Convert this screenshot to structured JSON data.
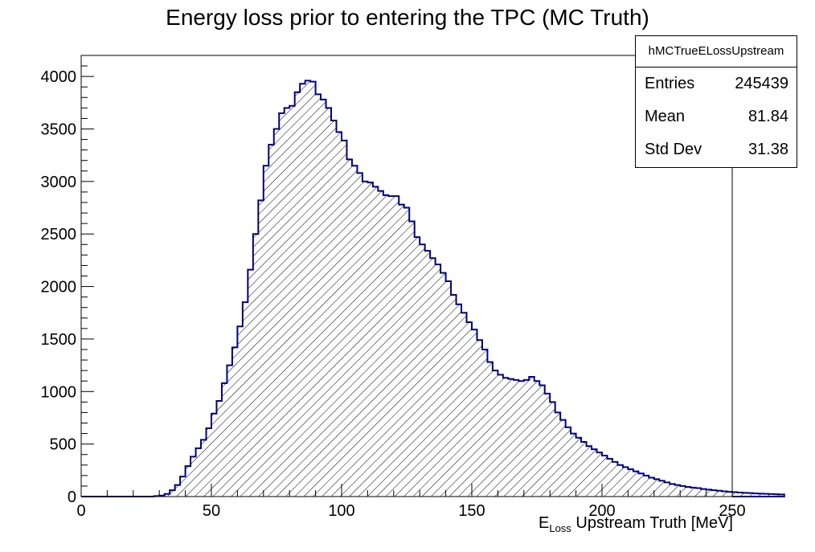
{
  "chart_data": {
    "type": "bar",
    "title": "Energy loss prior to entering the TPC (MC Truth)",
    "xlabel": "E",
    "xlabel_sub": "Loss",
    "xlabel_rest": "Upstream Truth [MeV]",
    "ylabel": "",
    "xlim": [
      0,
      250
    ],
    "ylim": [
      0,
      4200
    ],
    "x_ticks": [
      0,
      50,
      100,
      150,
      200,
      250
    ],
    "y_ticks": [
      0,
      500,
      1000,
      1500,
      2000,
      2500,
      3000,
      3500,
      4000
    ],
    "bin_width": 2,
    "bin_start": 0,
    "fill_style": "hatched",
    "colors": {
      "line": "#000080",
      "hatch": "#000000"
    },
    "values": [
      0,
      0,
      0,
      0,
      0,
      0,
      0,
      0,
      0,
      0,
      0,
      0,
      0,
      0,
      5,
      10,
      25,
      60,
      110,
      190,
      290,
      380,
      460,
      540,
      650,
      790,
      910,
      1080,
      1250,
      1420,
      1620,
      1850,
      2160,
      2500,
      2820,
      3150,
      3350,
      3500,
      3650,
      3700,
      3720,
      3850,
      3930,
      3960,
      3950,
      3830,
      3780,
      3700,
      3580,
      3470,
      3390,
      3210,
      3150,
      3080,
      3000,
      2990,
      2950,
      2910,
      2870,
      2860,
      2860,
      2780,
      2750,
      2620,
      2470,
      2400,
      2340,
      2270,
      2210,
      2130,
      2050,
      1920,
      1830,
      1750,
      1660,
      1590,
      1490,
      1400,
      1280,
      1200,
      1160,
      1130,
      1120,
      1110,
      1100,
      1110,
      1140,
      1100,
      1060,
      980,
      900,
      800,
      730,
      660,
      600,
      560,
      520,
      480,
      450,
      420,
      390,
      360,
      330,
      300,
      280,
      260,
      240,
      220,
      200,
      180,
      165,
      150,
      135,
      120,
      110,
      100,
      92,
      85,
      80,
      72,
      66,
      60,
      55,
      50,
      45,
      42,
      38,
      35,
      33,
      30,
      28,
      26,
      24,
      22,
      20
    ]
  },
  "stats": {
    "name": "hMCTrueELossUpstream",
    "rows": [
      {
        "label": "Entries",
        "value": "245439"
      },
      {
        "label": "Mean",
        "value": "81.84"
      },
      {
        "label": "Std Dev",
        "value": "31.38"
      }
    ]
  }
}
